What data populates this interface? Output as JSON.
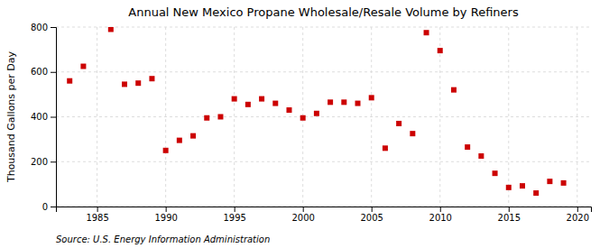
{
  "chart_data": {
    "type": "scatter",
    "title": "Annual New Mexico Propane Wholesale/Resale Volume by Refiners",
    "ylabel": "Thousand Gallons per Day",
    "annotations": [
      "Source: U.S. Energy Information Administration"
    ],
    "x": [
      1983,
      1984,
      1986,
      1987,
      1988,
      1989,
      1990,
      1991,
      1992,
      1993,
      1994,
      1995,
      1996,
      1997,
      1998,
      1999,
      2000,
      2001,
      2002,
      2003,
      2004,
      2005,
      2006,
      2007,
      2008,
      2009,
      2010,
      2011,
      2012,
      2013,
      2014,
      2015,
      2016,
      2017,
      2018,
      2019
    ],
    "values": [
      560,
      625,
      790,
      545,
      550,
      570,
      250,
      295,
      315,
      395,
      400,
      480,
      455,
      480,
      460,
      430,
      395,
      415,
      465,
      465,
      460,
      485,
      260,
      370,
      325,
      775,
      695,
      520,
      265,
      225,
      148,
      85,
      92,
      60,
      112,
      105
    ],
    "color": "#cc0000",
    "marker": "square",
    "xlim": [
      1982,
      2021
    ],
    "ylim": [
      0,
      800
    ],
    "xticks": [
      1985,
      1990,
      1995,
      2000,
      2005,
      2010,
      2015,
      2020
    ],
    "yticks": [
      0,
      200,
      400,
      600,
      800
    ],
    "grid": true
  }
}
